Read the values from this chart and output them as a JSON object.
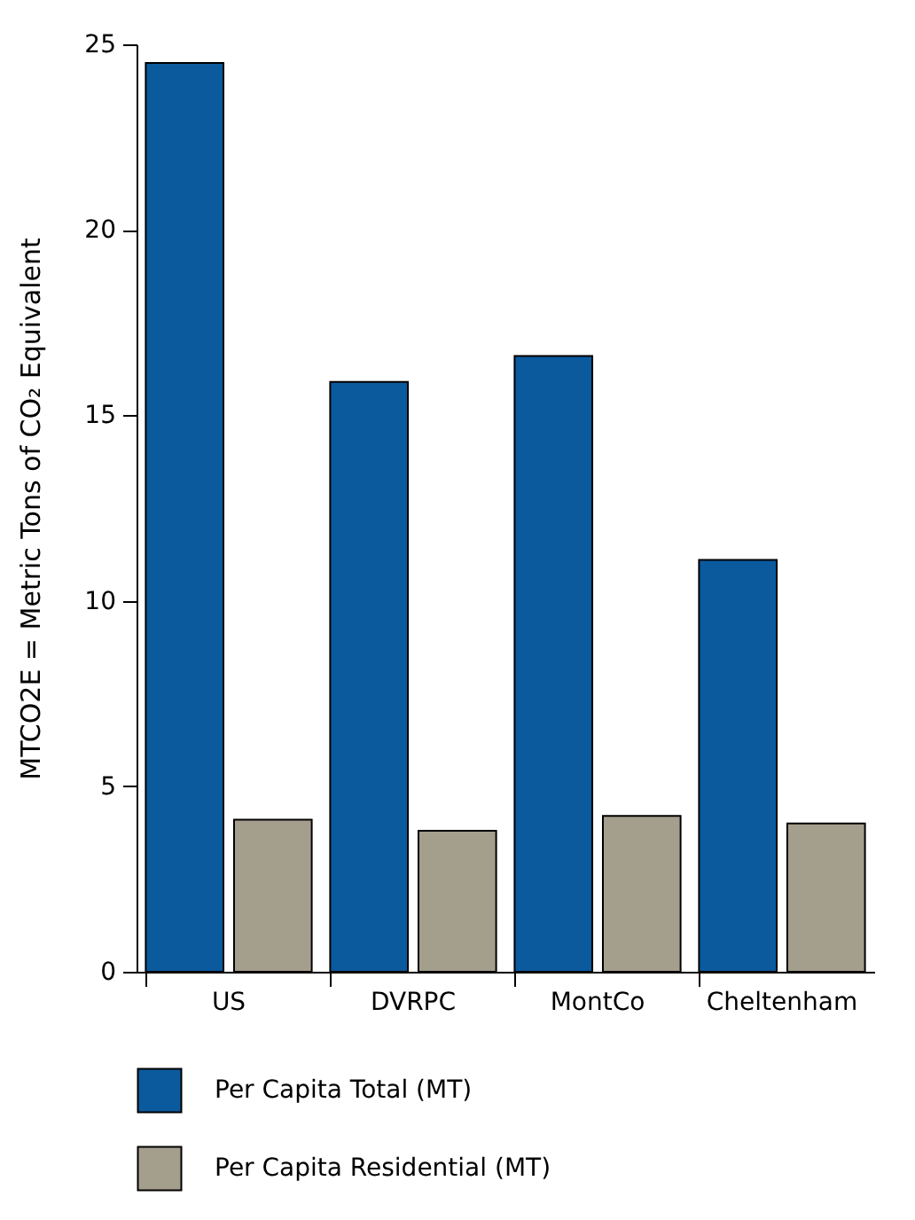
{
  "chart_data": {
    "type": "bar",
    "ylabel": "MTCO2E = Metric Tons of CO₂ Equivalent",
    "categories": [
      "US",
      "DVRPC",
      "MontCo",
      "Cheltenham"
    ],
    "series": [
      {
        "name": "Per Capita Total (MT)",
        "color": "#0b5a9e",
        "values": [
          24.5,
          15.9,
          16.6,
          11.1
        ]
      },
      {
        "name": "Per Capita Residential (MT)",
        "color": "#a49f8d",
        "values": [
          4.1,
          3.8,
          4.2,
          4.0
        ]
      }
    ],
    "ylim": [
      0,
      25
    ],
    "yticks": [
      0,
      5,
      10,
      15,
      20,
      25
    ],
    "grid": false,
    "legend": "bottom"
  }
}
